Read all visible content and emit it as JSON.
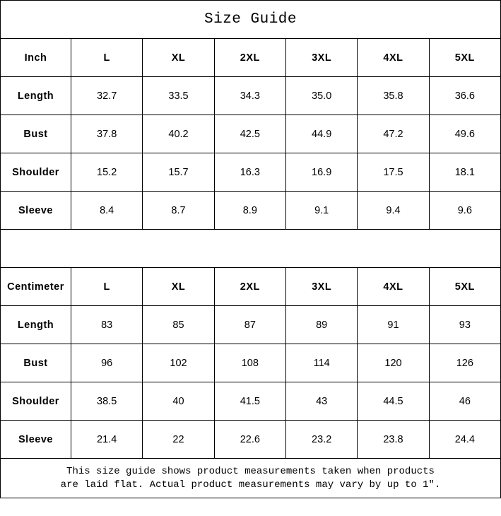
{
  "title": "Size Guide",
  "footer": {
    "line1": "This size guide shows product measurements taken when products",
    "line2": "are laid flat. Actual product measurements may vary by up to 1″."
  },
  "colors": {
    "border": "#000000",
    "background": "#ffffff",
    "text": "#000000"
  },
  "chart_data": [
    {
      "type": "table",
      "unit": "Inch",
      "columns": [
        "Inch",
        "L",
        "XL",
        "2XL",
        "3XL",
        "4XL",
        "5XL"
      ],
      "rows": [
        [
          "Length",
          "32.7",
          "33.5",
          "34.3",
          "35.0",
          "35.8",
          "36.6"
        ],
        [
          "Bust",
          "37.8",
          "40.2",
          "42.5",
          "44.9",
          "47.2",
          "49.6"
        ],
        [
          "Shoulder",
          "15.2",
          "15.7",
          "16.3",
          "16.9",
          "17.5",
          "18.1"
        ],
        [
          "Sleeve",
          "8.4",
          "8.7",
          "8.9",
          "9.1",
          "9.4",
          "9.6"
        ]
      ]
    },
    {
      "type": "table",
      "unit": "Centimeter",
      "columns": [
        "Centimeter",
        "L",
        "XL",
        "2XL",
        "3XL",
        "4XL",
        "5XL"
      ],
      "rows": [
        [
          "Length",
          "83",
          "85",
          "87",
          "89",
          "91",
          "93"
        ],
        [
          "Bust",
          "96",
          "102",
          "108",
          "114",
          "120",
          "126"
        ],
        [
          "Shoulder",
          "38.5",
          "40",
          "41.5",
          "43",
          "44.5",
          "46"
        ],
        [
          "Sleeve",
          "21.4",
          "22",
          "22.6",
          "23.2",
          "23.8",
          "24.4"
        ]
      ]
    }
  ]
}
